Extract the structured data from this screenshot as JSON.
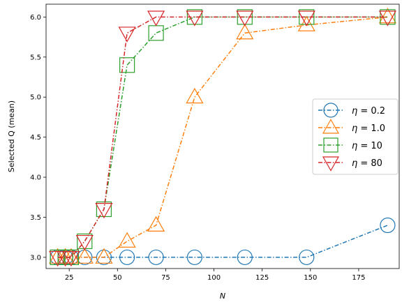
{
  "chart_data": {
    "type": "line",
    "xlabel": "N",
    "ylabel": "Selected Q (mean)",
    "xlim": [
      13,
      196
    ],
    "ylim": [
      2.86,
      6.16
    ],
    "x_ticks": [
      25,
      50,
      75,
      100,
      125,
      150,
      175
    ],
    "x_tick_labels": [
      "25",
      "50",
      "75",
      "100",
      "125",
      "150",
      "175"
    ],
    "y_ticks": [
      3.0,
      3.5,
      4.0,
      4.5,
      5.0,
      5.5,
      6.0
    ],
    "y_tick_labels": [
      "3.0",
      "3.5",
      "4.0",
      "4.5",
      "5.0",
      "5.5",
      "6.0"
    ],
    "grid": false,
    "legend_position": "center-right",
    "series": [
      {
        "name": "η = 0.2",
        "color": "#1f77b4",
        "marker": "circle",
        "x": [
          19,
          23,
          26,
          33,
          43,
          55,
          70,
          90,
          116,
          148,
          190
        ],
        "y": [
          3.0,
          3.0,
          3.0,
          3.0,
          3.0,
          3.0,
          3.0,
          3.0,
          3.0,
          3.0,
          3.4
        ]
      },
      {
        "name": "η = 1.0",
        "color": "#ff7f0e",
        "marker": "triangle-up",
        "x": [
          19,
          23,
          26,
          33,
          43,
          55,
          70,
          90,
          116,
          148,
          190
        ],
        "y": [
          3.0,
          3.0,
          3.0,
          3.0,
          3.0,
          3.2,
          3.4,
          5.0,
          5.8,
          5.9,
          6.0
        ]
      },
      {
        "name": "η = 10",
        "color": "#2ca02c",
        "marker": "square",
        "x": [
          19,
          23,
          26,
          33,
          43,
          55,
          70,
          90,
          116,
          148,
          190
        ],
        "y": [
          3.0,
          3.0,
          3.0,
          3.2,
          3.6,
          5.4,
          5.8,
          6.0,
          6.0,
          6.0,
          6.0
        ]
      },
      {
        "name": "η = 80",
        "color": "#d62728",
        "marker": "triangle-down",
        "x": [
          19,
          23,
          26,
          33,
          43,
          55,
          70,
          90,
          116,
          148,
          190
        ],
        "y": [
          3.0,
          3.0,
          3.0,
          3.2,
          3.6,
          5.8,
          6.0,
          6.0,
          6.0,
          6.0,
          6.0
        ]
      }
    ],
    "legend": [
      {
        "eta_symbol": "η",
        "eq": " = 0.2"
      },
      {
        "eta_symbol": "η",
        "eq": " = 1.0"
      },
      {
        "eta_symbol": "η",
        "eq": " = 10"
      },
      {
        "eta_symbol": "η",
        "eq": " = 80"
      }
    ]
  }
}
